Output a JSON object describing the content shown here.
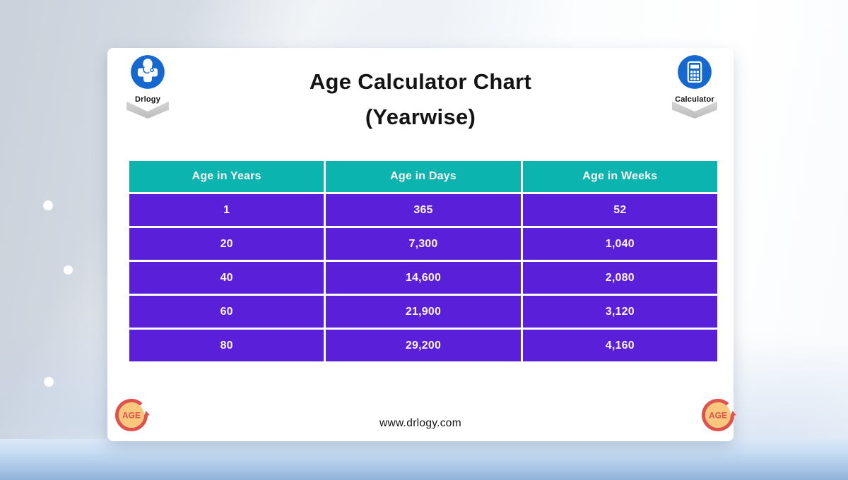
{
  "header": {
    "title_line1": "Age Calculator Chart",
    "title_line2": "(Yearwise)",
    "left_badge": {
      "label": "Drlogy",
      "icon": "drlogy-medical-logo"
    },
    "right_badge": {
      "label": "Calculator",
      "icon": "calculator"
    }
  },
  "footer": {
    "website": "www.drlogy.com",
    "age_icon_label": "AGE"
  },
  "chart_data": {
    "type": "table",
    "title": "Age Calculator Chart (Yearwise)",
    "columns": [
      "Age in Years",
      "Age in Days",
      "Age in Weeks"
    ],
    "rows": [
      [
        "1",
        "365",
        "52"
      ],
      [
        "20",
        "7,300",
        "1,040"
      ],
      [
        "40",
        "14,600",
        "2,080"
      ],
      [
        "60",
        "21,900",
        "3,120"
      ],
      [
        "80",
        "29,200",
        "4,160"
      ]
    ]
  },
  "colors": {
    "table_header_teal": "#0cb4b0",
    "table_row_purple": "#5a1fd9",
    "badge_blue": "#1668d1",
    "age_ring_red": "#e0524b",
    "age_fill_orange": "#f9c87d",
    "background_blue_band": "#a9c6e6"
  }
}
